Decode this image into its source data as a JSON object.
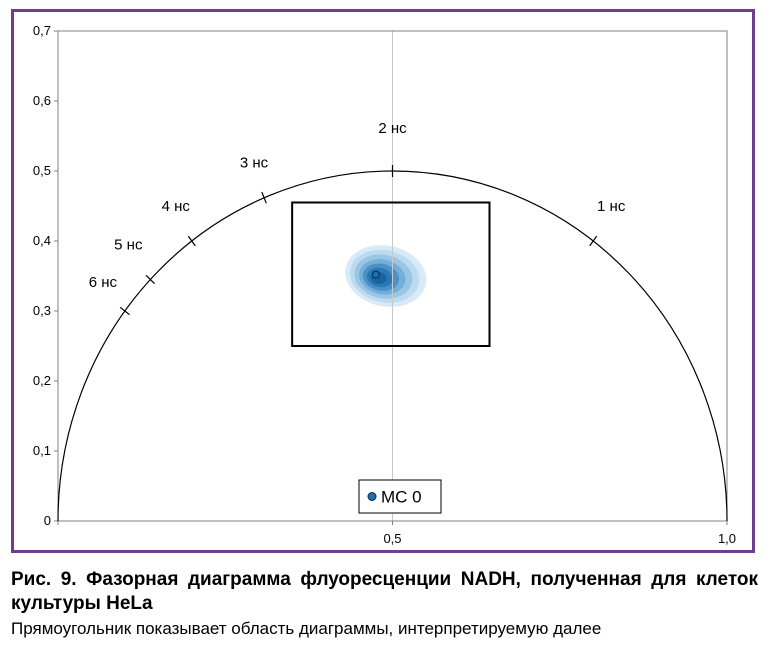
{
  "chart_data": {
    "type": "scatter",
    "xlim": [
      0,
      1.0
    ],
    "ylim": [
      0,
      0.7
    ],
    "x_ticks": [
      {
        "value": 0,
        "label": ""
      },
      {
        "value": 0.5,
        "label": "0,5"
      },
      {
        "value": 1.0,
        "label": "1,0"
      }
    ],
    "y_ticks": [
      {
        "value": 0,
        "label": "0"
      },
      {
        "value": 0.1,
        "label": "0,1"
      },
      {
        "value": 0.2,
        "label": "0,2"
      },
      {
        "value": 0.3,
        "label": "0,3"
      },
      {
        "value": 0.4,
        "label": "0,4"
      },
      {
        "value": 0.5,
        "label": "0,5"
      },
      {
        "value": 0.6,
        "label": "0,6"
      },
      {
        "value": 0.7,
        "label": "0,7"
      }
    ],
    "grid": {
      "vertical_at": [
        0.5
      ],
      "horizontal": false
    },
    "universal_circle": {
      "center": [
        0.5,
        0
      ],
      "radius": 0.5
    },
    "lifetime_marks": [
      {
        "label": "1 нс",
        "x": 0.8,
        "y": 0.4
      },
      {
        "label": "2 нс",
        "x": 0.5,
        "y": 0.5
      },
      {
        "label": "3 нс",
        "x": 0.308,
        "y": 0.462
      },
      {
        "label": "4 нс",
        "x": 0.2,
        "y": 0.4
      },
      {
        "label": "5 нс",
        "x": 0.138,
        "y": 0.345
      },
      {
        "label": "6 нс",
        "x": 0.1,
        "y": 0.3
      }
    ],
    "series": [
      {
        "name": "MC 0",
        "points": [
          {
            "x": 0.475,
            "y": 0.352
          }
        ],
        "color": "#1f6fb0"
      }
    ],
    "density": {
      "center": [
        0.49,
        0.35
      ],
      "levels": [
        {
          "rx": 0.175,
          "ry": 0.07,
          "color": "#d8eaf7"
        },
        {
          "rx": 0.15,
          "ry": 0.06,
          "color": "#bcdaf0"
        },
        {
          "rx": 0.125,
          "ry": 0.05,
          "color": "#9ac6e6"
        },
        {
          "rx": 0.1,
          "ry": 0.04,
          "color": "#74aed9"
        },
        {
          "rx": 0.078,
          "ry": 0.031,
          "color": "#4a91c8"
        },
        {
          "rx": 0.056,
          "ry": 0.022,
          "color": "#2a78b6"
        },
        {
          "rx": 0.034,
          "ry": 0.014,
          "color": "#1764a2"
        }
      ]
    },
    "roi_rectangle": {
      "x_min": 0.35,
      "x_max": 0.645,
      "y_min": 0.25,
      "y_max": 0.455
    },
    "legend": {
      "position": "bottom-center"
    }
  },
  "caption": {
    "title": "Рис. 9. Фазорная диаграмма флуоресценции NADH, полученная для клеток культуры HeLa",
    "subtitle": "Прямоугольник показывает область диаграммы, интерпретируемую далее"
  },
  "colors": {
    "frame": "#6e3d8e",
    "axis": "#808080",
    "circle": "#000000",
    "marker": "#1f6fb0"
  }
}
